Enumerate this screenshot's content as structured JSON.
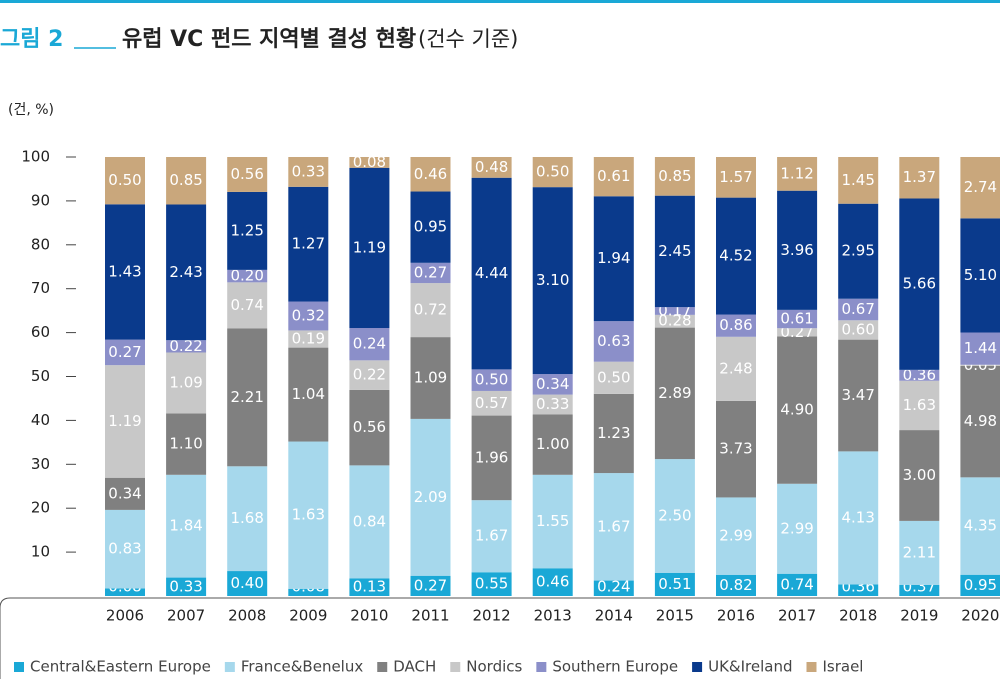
{
  "chart_data": {
    "type": "bar",
    "stack": "percent",
    "figure_label": "그림 2",
    "title": "유럽 VC 펀드 지역별 결성 현황",
    "subtitle": "(건수 기준)",
    "y_label": "(건, %)",
    "categories": [
      "2006",
      "2007",
      "2008",
      "2009",
      "2010",
      "2011",
      "2012",
      "2013",
      "2014",
      "2015",
      "2016",
      "2017",
      "2018",
      "2019",
      "2020"
    ],
    "ylim": [
      0,
      100
    ],
    "yticks": [
      10,
      20,
      30,
      40,
      50,
      60,
      70,
      80,
      90,
      100
    ],
    "series": [
      {
        "name": "Central&Eastern Europe",
        "color": "#1aa8d6",
        "values": [
          0.08,
          0.33,
          0.4,
          0.08,
          0.13,
          0.27,
          0.55,
          0.46,
          0.24,
          0.51,
          0.82,
          0.74,
          0.36,
          0.37,
          0.95
        ],
        "value_labels": [
          "0.08",
          "0.33",
          "0.40",
          "0.08",
          "0.13",
          "0.27",
          "0.55",
          "0.46",
          "0.24",
          "0.51",
          "0.82",
          "0.74",
          "0.36",
          "0.37",
          "0.95"
        ]
      },
      {
        "name": "France&Benelux",
        "color": "#a6d8ec",
        "values": [
          0.83,
          1.84,
          1.68,
          1.63,
          0.84,
          2.09,
          1.67,
          1.55,
          1.67,
          2.5,
          2.99,
          2.99,
          4.13,
          2.11,
          4.35
        ],
        "value_labels": [
          "0.83",
          "1.84",
          "1.68",
          "1.63",
          "0.84",
          "2.09",
          "1.67",
          "1.55",
          "1.67",
          "2.50",
          "2.99",
          "2.99",
          "4.13",
          "2.11",
          "4.35"
        ]
      },
      {
        "name": "DACH",
        "color": "#808080",
        "values": [
          0.34,
          1.1,
          2.21,
          1.04,
          0.56,
          1.09,
          1.96,
          1.0,
          1.23,
          2.89,
          3.73,
          4.9,
          3.47,
          3.0,
          4.98
        ],
        "value_labels": [
          "0.34",
          "1.10",
          "2.21",
          "1.04",
          "0.56",
          "1.09",
          "1.96",
          "1.00",
          "1.23",
          "2.89",
          "3.73",
          "4.90",
          "3.47",
          "3.00",
          "4.98"
        ]
      },
      {
        "name": "Nordics",
        "color": "#c8c8c8",
        "values": [
          1.19,
          1.09,
          0.74,
          0.19,
          0.22,
          0.72,
          0.57,
          0.33,
          0.5,
          0.28,
          2.48,
          0.27,
          0.6,
          1.63,
          0.05
        ],
        "value_labels": [
          "1.19",
          "1.09",
          "0.74",
          "0.19",
          "0.22",
          "0.72",
          "0.57",
          "0.33",
          "0.50",
          "0.28",
          "2.48",
          "0.27",
          "0.60",
          "1.63",
          "0.05"
        ]
      },
      {
        "name": "Southern Europe",
        "color": "#8b8fc9",
        "values": [
          0.27,
          0.22,
          0.2,
          0.32,
          0.24,
          0.27,
          0.5,
          0.34,
          0.63,
          0.17,
          0.86,
          0.61,
          0.67,
          0.36,
          1.44
        ],
        "value_labels": [
          "0.27",
          "0.22",
          "0.20",
          "0.32",
          "0.24",
          "0.27",
          "0.50",
          "0.34",
          "0.63",
          "0.17",
          "0.86",
          "0.61",
          "0.67",
          "0.36",
          "1.44"
        ]
      },
      {
        "name": "UK&Ireland",
        "color": "#0a3a8c",
        "values": [
          1.43,
          2.43,
          1.25,
          1.27,
          1.19,
          0.95,
          4.44,
          3.1,
          1.94,
          2.45,
          4.52,
          3.96,
          2.95,
          5.66,
          5.1
        ],
        "value_labels": [
          "1.43",
          "2.43",
          "1.25",
          "1.27",
          "1.19",
          "0.95",
          "4.44",
          "3.10",
          "1.94",
          "2.45",
          "4.52",
          "3.96",
          "2.95",
          "5.66",
          "5.10"
        ]
      },
      {
        "name": "Israel",
        "color": "#c9a77c",
        "values": [
          0.5,
          0.85,
          0.56,
          0.33,
          0.08,
          0.46,
          0.48,
          0.5,
          0.61,
          0.85,
          1.57,
          1.12,
          1.45,
          1.37,
          2.74
        ],
        "value_labels": [
          "0.50",
          "0.85",
          "0.56",
          "0.33",
          "0.08",
          "0.46",
          "0.48",
          "0.50",
          "0.61",
          "0.85",
          "1.57",
          "1.12",
          "1.45",
          "1.37",
          "2.74"
        ]
      }
    ]
  }
}
